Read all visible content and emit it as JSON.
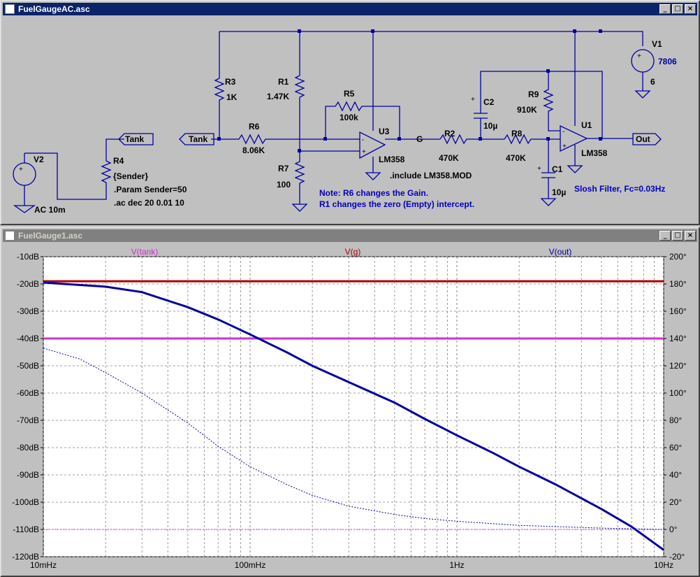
{
  "schematic_window": {
    "title": "FuelGaugeAC.asc",
    "buttons": {
      "minimize": "_",
      "maximize": "□",
      "close": "×"
    },
    "components": {
      "V1": {
        "name": "V1",
        "value": "7806",
        "value2": "6"
      },
      "V2": {
        "name": "V2",
        "value": "AC 10m"
      },
      "R1": {
        "name": "R1",
        "value": "1.47K"
      },
      "R2": {
        "name": "R2",
        "value": "470K"
      },
      "R3": {
        "name": "R3",
        "value": "1K"
      },
      "R4": {
        "name": "R4",
        "value": "{Sender}"
      },
      "R5": {
        "name": "R5",
        "value": "100k"
      },
      "R6": {
        "name": "R6",
        "value": "8.06K"
      },
      "R7": {
        "name": "R7",
        "value": "100"
      },
      "R8": {
        "name": "R8",
        "value": "470K"
      },
      "R9": {
        "name": "R9",
        "value": "910K"
      },
      "C1": {
        "name": "C1",
        "value": "10µ"
      },
      "C2": {
        "name": "C2",
        "value": "10µ"
      },
      "U1": {
        "name": "U1",
        "value": "LM358"
      },
      "U3": {
        "name": "U3",
        "value": "LM358"
      }
    },
    "labels": {
      "tank1": "Tank",
      "tank2": "Tank",
      "out": "Out",
      "g": "G"
    },
    "directives": {
      "param": ".Param Sender=50",
      "ac": ".ac dec 20 0.01 10",
      "include": ".include LM358.MOD"
    },
    "notes": {
      "note1": "Note: R6 changes the Gain.",
      "note2": "R1 changes the zero (Empty)  intercept.",
      "slosh": "Slosh Filter, Fc=0.03Hz"
    }
  },
  "plot_window": {
    "title": "FuelGauge1.asc",
    "buttons": {
      "minimize": "_",
      "maximize": "□",
      "close": "×"
    }
  },
  "colors": {
    "tank": "#cc33cc",
    "g": "#b00000",
    "out": "#0000a0",
    "wire": "#0000a0"
  },
  "chart_data": {
    "type": "line",
    "x_scale": "log",
    "xlim": [
      0.01,
      10
    ],
    "ylim": [
      -120,
      -10
    ],
    "y2lim": [
      -20,
      200
    ],
    "x_ticks": [
      {
        "v": 0.01,
        "label": "10mHz"
      },
      {
        "v": 0.1,
        "label": "100mHz"
      },
      {
        "v": 1,
        "label": "1Hz"
      },
      {
        "v": 10,
        "label": "10Hz"
      }
    ],
    "y_ticks": [
      "-10dB",
      "-20dB",
      "-30dB",
      "-40dB",
      "-50dB",
      "-60dB",
      "-70dB",
      "-80dB",
      "-90dB",
      "-100dB",
      "-110dB",
      "-120dB"
    ],
    "y2_ticks": [
      "200°",
      "180°",
      "160°",
      "140°",
      "120°",
      "100°",
      "80°",
      "60°",
      "40°",
      "20°",
      "0°",
      "-20°"
    ],
    "grid": true,
    "legend": [
      {
        "name": "V(tank)",
        "color": "#cc33cc"
      },
      {
        "name": "V(g)",
        "color": "#b00000"
      },
      {
        "name": "V(out)",
        "color": "#0000a0"
      }
    ],
    "series": [
      {
        "name": "V(tank)",
        "kind": "magnitude",
        "x": [
          0.01,
          10
        ],
        "y": [
          -40,
          -40
        ]
      },
      {
        "name": "V(g)",
        "kind": "magnitude",
        "x": [
          0.01,
          10
        ],
        "y": [
          -19,
          -19
        ]
      },
      {
        "name": "V(out)",
        "kind": "magnitude",
        "x": [
          0.01,
          0.02,
          0.03,
          0.05,
          0.07,
          0.1,
          0.15,
          0.2,
          0.3,
          0.5,
          0.7,
          1,
          1.5,
          2,
          3,
          5,
          7,
          10
        ],
        "y": [
          -19.5,
          -21,
          -23,
          -28.5,
          -33,
          -38.5,
          -45,
          -50,
          -56,
          -63.5,
          -69.5,
          -75.5,
          -82,
          -87,
          -93.5,
          -102.5,
          -109,
          -117.5
        ]
      },
      {
        "name": "V(tank)",
        "kind": "phase",
        "x": [
          0.01,
          10
        ],
        "y": [
          0,
          0
        ]
      },
      {
        "name": "V(out)",
        "kind": "phase",
        "x": [
          0.01,
          0.015,
          0.02,
          0.03,
          0.05,
          0.07,
          0.1,
          0.15,
          0.2,
          0.3,
          0.5,
          0.7,
          1,
          2,
          5,
          10
        ],
        "y": [
          133,
          125,
          115,
          100,
          78,
          61,
          46,
          33,
          25,
          17,
          11,
          8,
          6,
          3,
          1,
          0
        ]
      }
    ]
  }
}
